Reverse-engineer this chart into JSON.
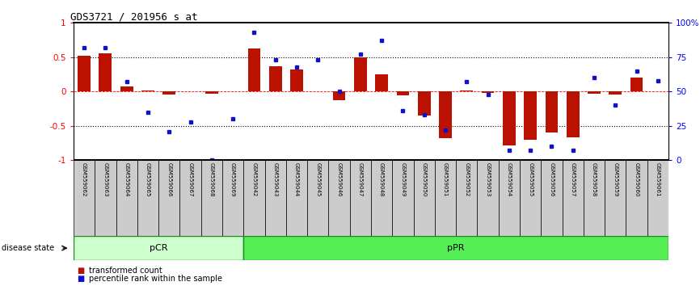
{
  "title": "GDS3721 / 201956_s_at",
  "samples": [
    "GSM559062",
    "GSM559063",
    "GSM559064",
    "GSM559065",
    "GSM559066",
    "GSM559067",
    "GSM559068",
    "GSM559069",
    "GSM559042",
    "GSM559043",
    "GSM559044",
    "GSM559045",
    "GSM559046",
    "GSM559047",
    "GSM559048",
    "GSM559049",
    "GSM559050",
    "GSM559051",
    "GSM559052",
    "GSM559053",
    "GSM559054",
    "GSM559055",
    "GSM559056",
    "GSM559057",
    "GSM559058",
    "GSM559059",
    "GSM559060",
    "GSM559061"
  ],
  "transformed_count": [
    0.52,
    0.56,
    0.07,
    0.01,
    -0.04,
    0.0,
    -0.03,
    0.0,
    0.63,
    0.37,
    0.32,
    0.0,
    -0.13,
    0.5,
    0.25,
    -0.05,
    -0.35,
    -0.68,
    0.02,
    -0.02,
    -0.78,
    -0.7,
    -0.6,
    -0.67,
    -0.03,
    -0.04,
    0.2,
    0.0
  ],
  "percentile_rank": [
    82,
    82,
    57,
    35,
    21,
    28,
    0,
    30,
    93,
    73,
    68,
    73,
    50,
    77,
    87,
    36,
    33,
    22,
    57,
    48,
    7,
    7,
    10,
    7,
    60,
    40,
    65,
    58
  ],
  "pcr_count": 8,
  "ppr_count": 20,
  "bar_color": "#bb1100",
  "dot_color": "#1111cc",
  "pcr_color": "#ccffcc",
  "ppr_color": "#55ee55",
  "disease_state_label": "disease state",
  "legend_bar": "transformed count",
  "legend_dot": "percentile rank within the sample"
}
